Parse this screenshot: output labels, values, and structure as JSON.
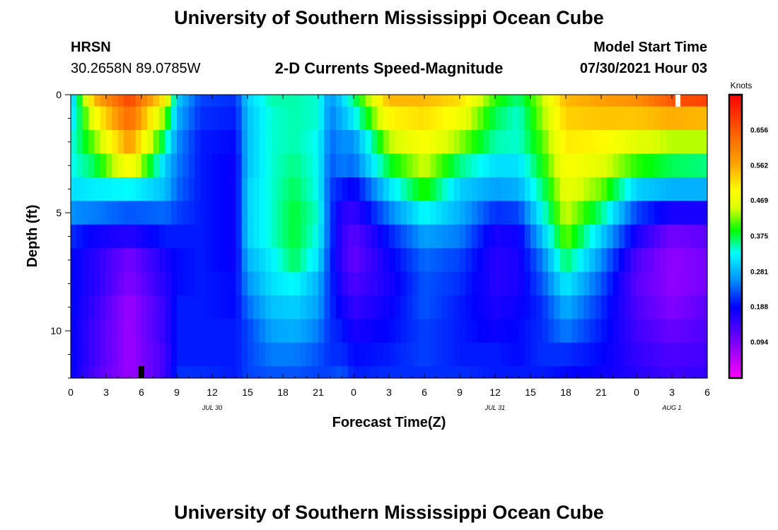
{
  "header": {
    "title_top": "University of Southern Mississippi Ocean Cube",
    "title_bottom": "University of Southern Mississippi Ocean Cube",
    "station_name": "HRSN",
    "station_coords": "30.2658N  89.0785W",
    "plot_title": "2-D Currents Speed-Magnitude",
    "model_label": "Model Start Time",
    "model_time": "07/30/2021 Hour 03"
  },
  "chart_data": {
    "type": "heatmap",
    "title": "2-D Currents Speed-Magnitude",
    "xlabel": "Forecast Time(Z)",
    "ylabel": "Depth (ft)",
    "x_range_hours": [
      0,
      54
    ],
    "y_range_ft": [
      0,
      12
    ],
    "x_tick_labels": [
      "0",
      "3",
      "6",
      "9",
      "12",
      "15",
      "18",
      "21",
      "0",
      "3",
      "6",
      "9",
      "12",
      "15",
      "18",
      "21",
      "0",
      "3",
      "6"
    ],
    "y_ticks": [
      0,
      5,
      10
    ],
    "date_labels": [
      {
        "text": "JUL 30",
        "hour": 12
      },
      {
        "text": "JUL 31",
        "hour": 36
      },
      {
        "text": "AUG 1",
        "hour": 51
      }
    ],
    "colorbar": {
      "label": "Knots",
      "min": 0.0,
      "max": 0.75,
      "ticks": [
        "0.656",
        "0.562",
        "0.469",
        "0.375",
        "0.281",
        "0.188",
        "0.094"
      ]
    },
    "depth_levels_ft": [
      0,
      1,
      2,
      3,
      4,
      5,
      6,
      7,
      8,
      9,
      10,
      11,
      12
    ],
    "speed_profiles": [
      {
        "hour": 0,
        "speeds": [
          0.28,
          0.3,
          0.33,
          0.33,
          0.31,
          0.26,
          0.21,
          0.19,
          0.19,
          0.19,
          0.19,
          0.19,
          0.19
        ]
      },
      {
        "hour": 2,
        "speeds": [
          0.55,
          0.48,
          0.42,
          0.37,
          0.32,
          0.25,
          0.18,
          0.16,
          0.16,
          0.15,
          0.14,
          0.14,
          0.13
        ]
      },
      {
        "hour": 5,
        "speeds": [
          0.68,
          0.64,
          0.58,
          0.5,
          0.33,
          0.23,
          0.16,
          0.1,
          0.09,
          0.07,
          0.07,
          0.07,
          0.07
        ]
      },
      {
        "hour": 8,
        "speeds": [
          0.5,
          0.42,
          0.36,
          0.3,
          0.29,
          0.24,
          0.2,
          0.17,
          0.16,
          0.15,
          0.15,
          0.14,
          0.14
        ]
      },
      {
        "hour": 9,
        "speeds": [
          0.3,
          0.28,
          0.26,
          0.25,
          0.24,
          0.22,
          0.2,
          0.19,
          0.19,
          0.2,
          0.2,
          0.2,
          0.21
        ]
      },
      {
        "hour": 11,
        "speeds": [
          0.22,
          0.21,
          0.2,
          0.2,
          0.2,
          0.2,
          0.2,
          0.2,
          0.2,
          0.2,
          0.2,
          0.2,
          0.21
        ]
      },
      {
        "hour": 14,
        "speeds": [
          0.21,
          0.2,
          0.19,
          0.18,
          0.18,
          0.18,
          0.18,
          0.18,
          0.19,
          0.19,
          0.2,
          0.2,
          0.2
        ]
      },
      {
        "hour": 15,
        "speeds": [
          0.3,
          0.29,
          0.29,
          0.29,
          0.3,
          0.3,
          0.3,
          0.28,
          0.26,
          0.24,
          0.22,
          0.22,
          0.22
        ]
      },
      {
        "hour": 17,
        "speeds": [
          0.35,
          0.34,
          0.34,
          0.34,
          0.34,
          0.34,
          0.34,
          0.32,
          0.31,
          0.29,
          0.27,
          0.25,
          0.23
        ]
      },
      {
        "hour": 19,
        "speeds": [
          0.35,
          0.35,
          0.35,
          0.36,
          0.37,
          0.38,
          0.38,
          0.37,
          0.33,
          0.3,
          0.28,
          0.25,
          0.23
        ]
      },
      {
        "hour": 21,
        "speeds": [
          0.34,
          0.34,
          0.33,
          0.33,
          0.33,
          0.34,
          0.33,
          0.31,
          0.28,
          0.27,
          0.25,
          0.23,
          0.22
        ]
      },
      {
        "hour": 22,
        "speeds": [
          0.26,
          0.25,
          0.24,
          0.23,
          0.22,
          0.22,
          0.22,
          0.21,
          0.21,
          0.21,
          0.21,
          0.21,
          0.22
        ]
      },
      {
        "hour": 23,
        "speeds": [
          0.3,
          0.28,
          0.26,
          0.25,
          0.2,
          0.16,
          0.15,
          0.15,
          0.16,
          0.18,
          0.2,
          0.21,
          0.23
        ]
      },
      {
        "hour": 24,
        "speeds": [
          0.36,
          0.32,
          0.26,
          0.24,
          0.18,
          0.15,
          0.12,
          0.11,
          0.13,
          0.15,
          0.17,
          0.19,
          0.2
        ]
      },
      {
        "hour": 27,
        "speeds": [
          0.55,
          0.5,
          0.44,
          0.38,
          0.31,
          0.25,
          0.2,
          0.18,
          0.17,
          0.18,
          0.19,
          0.2,
          0.21
        ]
      },
      {
        "hour": 30,
        "speeds": [
          0.55,
          0.52,
          0.49,
          0.45,
          0.4,
          0.33,
          0.27,
          0.24,
          0.23,
          0.23,
          0.22,
          0.22,
          0.21
        ]
      },
      {
        "hour": 33,
        "speeds": [
          0.52,
          0.48,
          0.43,
          0.36,
          0.3,
          0.28,
          0.25,
          0.22,
          0.21,
          0.2,
          0.2,
          0.2,
          0.21
        ]
      },
      {
        "hour": 36,
        "speeds": [
          0.4,
          0.37,
          0.35,
          0.31,
          0.27,
          0.21,
          0.17,
          0.16,
          0.16,
          0.17,
          0.18,
          0.2,
          0.2
        ]
      },
      {
        "hour": 38,
        "speeds": [
          0.36,
          0.34,
          0.34,
          0.31,
          0.28,
          0.22,
          0.18,
          0.17,
          0.17,
          0.18,
          0.19,
          0.19,
          0.2
        ]
      },
      {
        "hour": 40,
        "speeds": [
          0.44,
          0.43,
          0.41,
          0.39,
          0.36,
          0.33,
          0.29,
          0.25,
          0.23,
          0.21,
          0.21,
          0.21,
          0.2
        ]
      },
      {
        "hour": 42,
        "speeds": [
          0.55,
          0.53,
          0.51,
          0.49,
          0.47,
          0.45,
          0.42,
          0.37,
          0.32,
          0.28,
          0.25,
          0.21,
          0.19
        ]
      },
      {
        "hour": 45,
        "speeds": [
          0.57,
          0.54,
          0.5,
          0.46,
          0.42,
          0.36,
          0.3,
          0.26,
          0.23,
          0.21,
          0.2,
          0.19,
          0.18
        ]
      },
      {
        "hour": 48,
        "speeds": [
          0.59,
          0.54,
          0.46,
          0.4,
          0.3,
          0.22,
          0.17,
          0.13,
          0.12,
          0.13,
          0.14,
          0.15,
          0.16
        ]
      },
      {
        "hour": 51,
        "speeds": [
          0.66,
          0.56,
          0.44,
          0.37,
          0.28,
          0.17,
          0.1,
          0.08,
          0.08,
          0.09,
          0.11,
          0.13,
          0.14
        ]
      },
      {
        "hour": 54,
        "speeds": [
          0.68,
          0.55,
          0.44,
          0.36,
          0.28,
          0.17,
          0.12,
          0.1,
          0.1,
          0.12,
          0.13,
          0.14,
          0.15
        ]
      }
    ]
  }
}
